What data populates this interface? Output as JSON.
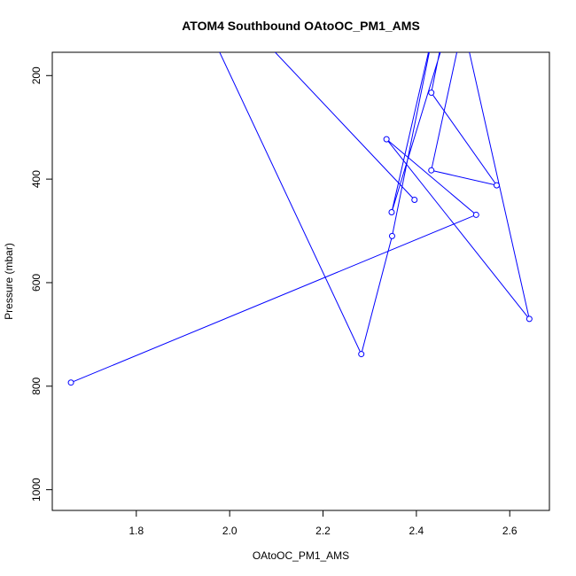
{
  "chart_data": {
    "type": "line",
    "title": "ATOM4 Southbound OAtoOC_PM1_AMS",
    "xlabel": "OAtoOC_PM1_AMS",
    "ylabel": "Pressure (mbar)",
    "xlim": [
      1.62,
      2.685
    ],
    "ylim": [
      1040,
      155
    ],
    "y_axis_inverted": true,
    "x_ticks": [
      {
        "value": 1.8,
        "label": "1.8"
      },
      {
        "value": 2.0,
        "label": "2.0"
      },
      {
        "value": 2.2,
        "label": "2.2"
      },
      {
        "value": 2.4,
        "label": "2.4"
      },
      {
        "value": 2.6,
        "label": "2.6"
      }
    ],
    "y_ticks": [
      {
        "value": 200,
        "label": "200"
      },
      {
        "value": 400,
        "label": "400"
      },
      {
        "value": 600,
        "label": "600"
      },
      {
        "value": 800,
        "label": "800"
      },
      {
        "value": 1000,
        "label": "1000"
      }
    ],
    "grid": false,
    "legend": "none",
    "series": [
      {
        "color": "#0000ff",
        "markers": "open-circle",
        "x": [
          1.66,
          2.528,
          2.336,
          2.642,
          2.5,
          2.432,
          2.572,
          2.432,
          2.462,
          1.858,
          1.95,
          2.282,
          2.348,
          2.44,
          2.347,
          2.47,
          2.04,
          2.396
        ],
        "y": [
          793,
          469,
          323,
          670,
          100,
          383,
          412,
          233,
          100,
          110,
          100,
          738,
          510,
          100,
          464,
          100,
          100,
          440
        ]
      }
    ]
  }
}
